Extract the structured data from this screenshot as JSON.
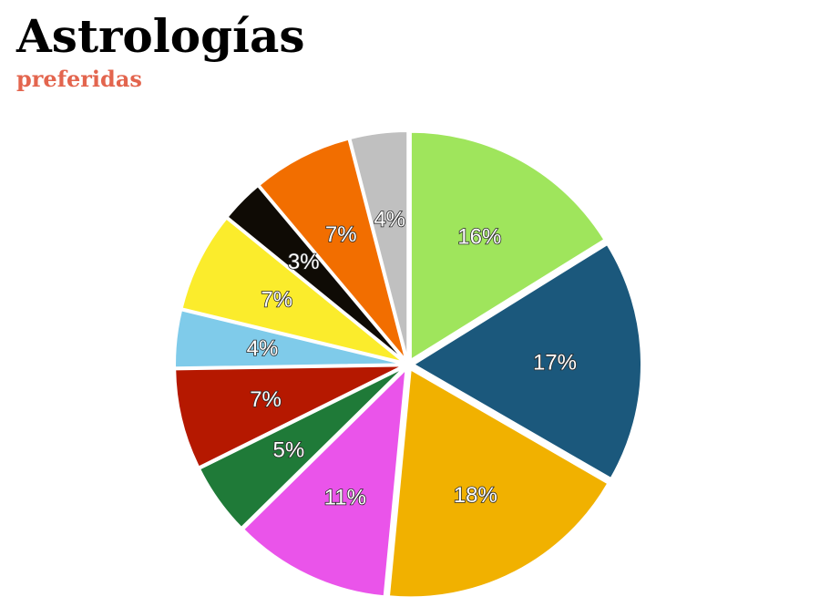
{
  "header": {
    "title": "Astrologías",
    "subtitle": "preferidas"
  },
  "colors": {
    "subtitle": "#e3654e",
    "background": "#ffffff"
  },
  "chart_data": {
    "type": "pie",
    "title": "Astrologías",
    "subtitle": "preferidas",
    "start_angle_deg": 0,
    "direction": "clockwise",
    "exploded": true,
    "slices": [
      {
        "label": "16%",
        "value": 16,
        "color": "#9fe55c"
      },
      {
        "label": "17%",
        "value": 17,
        "color": "#1b587c"
      },
      {
        "label": "18%",
        "value": 18,
        "color": "#f1b100"
      },
      {
        "label": "11%",
        "value": 11,
        "color": "#ea54ea"
      },
      {
        "label": "5%",
        "value": 5,
        "color": "#1f7a38"
      },
      {
        "label": "7%",
        "value": 7,
        "color": "#b51800"
      },
      {
        "label": "4%",
        "value": 4,
        "color": "#7fcbea"
      },
      {
        "label": "7%",
        "value": 7,
        "color": "#fbec2c"
      },
      {
        "label": "3%",
        "value": 3,
        "color": "#0f0b05"
      },
      {
        "label": "7%",
        "value": 7,
        "color": "#f26e00"
      },
      {
        "label": "4%",
        "value": 4,
        "color": "#c0c0c0"
      }
    ]
  }
}
